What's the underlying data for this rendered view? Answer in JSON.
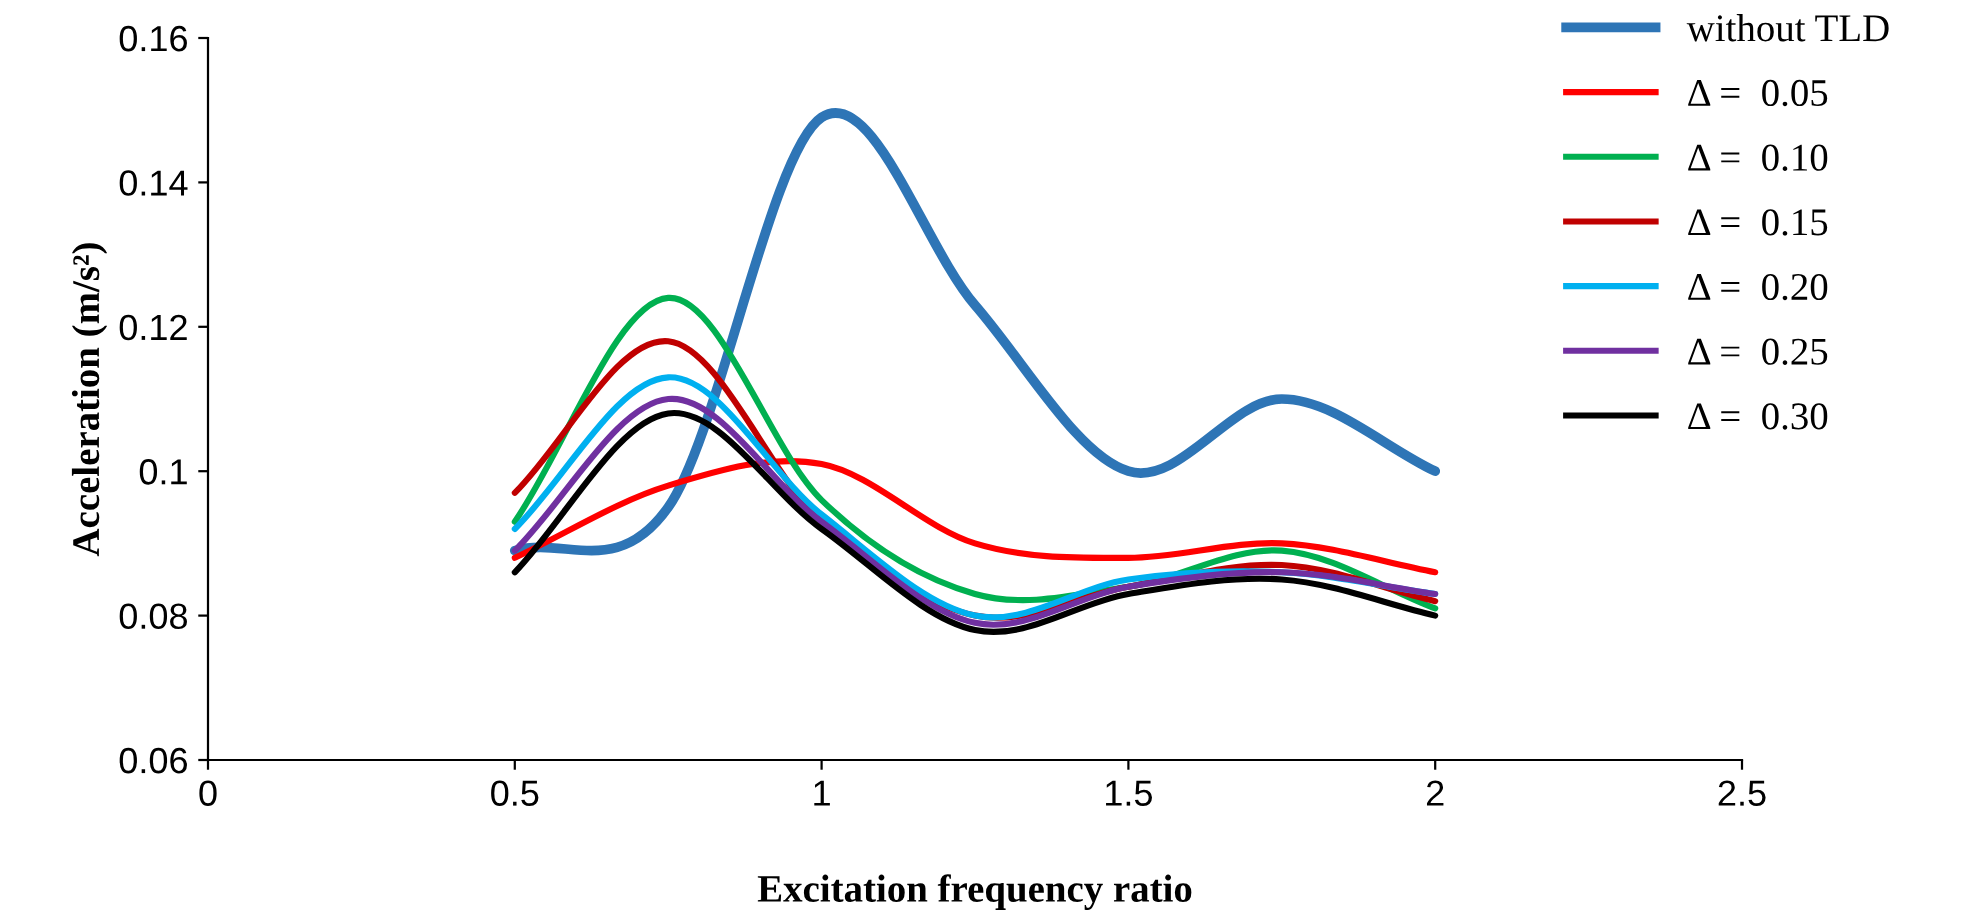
{
  "chart_data": {
    "type": "line",
    "xlabel": "Excitation frequency ratio",
    "ylabel": "Acceleration (m/s²)",
    "x": [
      0.5,
      0.75,
      1,
      1.25,
      1.5,
      1.75,
      2
    ],
    "series": [
      {
        "name": "without TLD",
        "color": "#2e75b6",
        "values": [
          0.089,
          0.095,
          0.149,
          0.123,
          0.1,
          0.11,
          0.1
        ]
      },
      {
        "name": "Δ =  0.05",
        "color": "#ff0000",
        "values": [
          0.088,
          0.098,
          0.101,
          0.09,
          0.088,
          0.09,
          0.086
        ]
      },
      {
        "name": "Δ =  0.10",
        "color": "#00b050",
        "values": [
          0.093,
          0.124,
          0.096,
          0.083,
          0.084,
          0.089,
          0.081
        ]
      },
      {
        "name": "Δ =  0.15",
        "color": "#c00000",
        "values": [
          0.097,
          0.118,
          0.093,
          0.08,
          0.084,
          0.087,
          0.082
        ]
      },
      {
        "name": "Δ =  0.20",
        "color": "#00b0f0",
        "values": [
          0.092,
          0.113,
          0.094,
          0.08,
          0.085,
          0.086,
          0.083
        ]
      },
      {
        "name": "Δ =  0.25",
        "color": "#7030a0",
        "values": [
          0.089,
          0.11,
          0.093,
          0.079,
          0.084,
          0.086,
          0.083
        ]
      },
      {
        "name": "Δ =  0.30",
        "color": "#000000",
        "values": [
          0.086,
          0.108,
          0.092,
          0.078,
          0.083,
          0.085,
          0.08
        ]
      }
    ],
    "xlim": [
      0,
      2.5
    ],
    "xticks": [
      0,
      0.5,
      1,
      1.5,
      2,
      2.5
    ],
    "ylim": [
      0.06,
      0.16
    ],
    "yticks": [
      0.06,
      0.08,
      0.1,
      0.12,
      0.14,
      0.16
    ],
    "grid": false,
    "legend": "right",
    "marker": "none",
    "line_style": "solid"
  }
}
